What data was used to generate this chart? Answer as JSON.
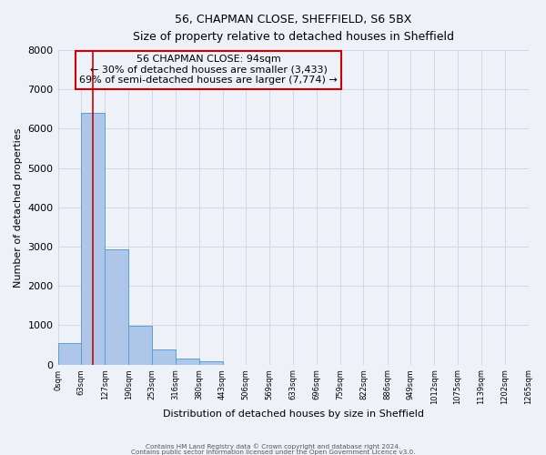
{
  "title_line1": "56, CHAPMAN CLOSE, SHEFFIELD, S6 5BX",
  "title_line2": "Size of property relative to detached houses in Sheffield",
  "xlabel": "Distribution of detached houses by size in Sheffield",
  "ylabel": "Number of detached properties",
  "bar_values": [
    550,
    6400,
    2920,
    980,
    380,
    150,
    75,
    0,
    0,
    0,
    0,
    0,
    0,
    0,
    0,
    0,
    0,
    0,
    0,
    0
  ],
  "bin_edges": [
    0,
    63,
    127,
    190,
    253,
    316,
    380,
    443,
    506,
    569,
    633,
    696,
    759,
    822,
    886,
    949,
    1012,
    1075,
    1139,
    1202,
    1265
  ],
  "tick_labels": [
    "0sqm",
    "63sqm",
    "127sqm",
    "190sqm",
    "253sqm",
    "316sqm",
    "380sqm",
    "443sqm",
    "506sqm",
    "569sqm",
    "633sqm",
    "696sqm",
    "759sqm",
    "822sqm",
    "886sqm",
    "949sqm",
    "1012sqm",
    "1075sqm",
    "1139sqm",
    "1202sqm",
    "1265sqm"
  ],
  "ylim": [
    0,
    8000
  ],
  "yticks": [
    0,
    1000,
    2000,
    3000,
    4000,
    5000,
    6000,
    7000,
    8000
  ],
  "bar_color": "#aec6e8",
  "bar_edge_color": "#5a9fd4",
  "vline_x": 94,
  "vline_color": "#cc0000",
  "annotation_title": "56 CHAPMAN CLOSE: 94sqm",
  "annotation_line1": "← 30% of detached houses are smaller (3,433)",
  "annotation_line2": "69% of semi-detached houses are larger (7,774) →",
  "annotation_box_color": "#cc0000",
  "grid_color": "#d0d8e8",
  "bg_color": "#eef2f8",
  "footer_line1": "Contains HM Land Registry data © Crown copyright and database right 2024.",
  "footer_line2": "Contains public sector information licensed under the Open Government Licence v3.0."
}
